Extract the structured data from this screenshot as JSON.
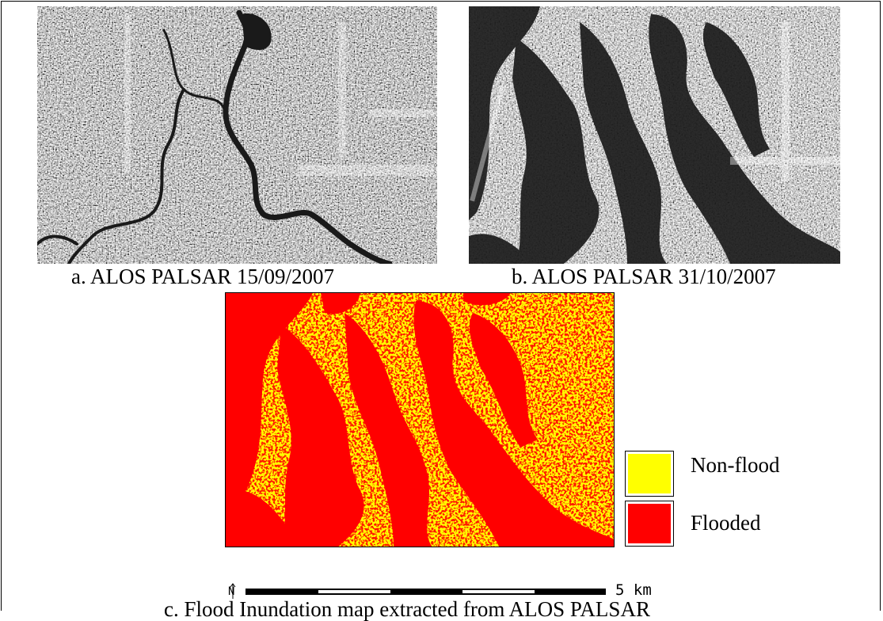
{
  "panels": {
    "a": {
      "caption": "a. ALOS PALSAR 15/09/2007"
    },
    "b": {
      "caption": "b. ALOS PALSAR 31/10/2007"
    },
    "c": {
      "caption": "c. Flood Inundation map extracted from ALOS PALSAR"
    }
  },
  "legend": {
    "items": [
      {
        "label": "Non-flood",
        "color": "#ffff00"
      },
      {
        "label": "Flooded",
        "color": "#ff0000"
      }
    ]
  },
  "scalebar": {
    "label": "5 km",
    "north_symbol": "N"
  }
}
